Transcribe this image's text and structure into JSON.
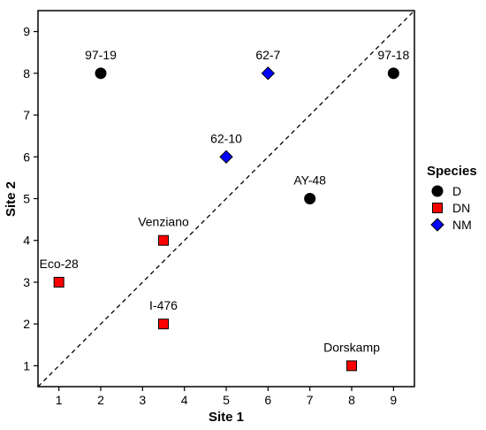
{
  "chart_data": {
    "type": "scatter",
    "xlabel": "Site 1",
    "ylabel": "Site 2",
    "xlim": [
      0.5,
      9.5
    ],
    "ylim": [
      0.5,
      9.5
    ],
    "xticks": [
      1,
      2,
      3,
      4,
      5,
      6,
      7,
      8,
      9
    ],
    "yticks": [
      1,
      2,
      3,
      4,
      5,
      6,
      7,
      8,
      9
    ],
    "grid": false,
    "reference_line": {
      "style": "dashed",
      "slope": 1,
      "intercept": 0
    },
    "legend": {
      "title": "Species",
      "position": "right",
      "entries": [
        {
          "name": "D",
          "shape": "circle",
          "color": "#000000"
        },
        {
          "name": "DN",
          "shape": "square",
          "color": "#ff0000"
        },
        {
          "name": "NM",
          "shape": "diamond",
          "color": "#0000ff"
        }
      ]
    },
    "points": [
      {
        "label": "97-19",
        "x": 2,
        "y": 8,
        "species": "D"
      },
      {
        "label": "97-18",
        "x": 9,
        "y": 8,
        "species": "D"
      },
      {
        "label": "AY-48",
        "x": 7,
        "y": 5,
        "species": "D"
      },
      {
        "label": "Eco-28",
        "x": 1,
        "y": 3,
        "species": "DN"
      },
      {
        "label": "Venziano",
        "x": 3.5,
        "y": 4,
        "species": "DN"
      },
      {
        "label": "I-476",
        "x": 3.5,
        "y": 2,
        "species": "DN"
      },
      {
        "label": "Dorskamp",
        "x": 8,
        "y": 1,
        "species": "DN"
      },
      {
        "label": "62-7",
        "x": 6,
        "y": 8,
        "species": "NM"
      },
      {
        "label": "62-10",
        "x": 5,
        "y": 6,
        "species": "NM"
      }
    ]
  }
}
